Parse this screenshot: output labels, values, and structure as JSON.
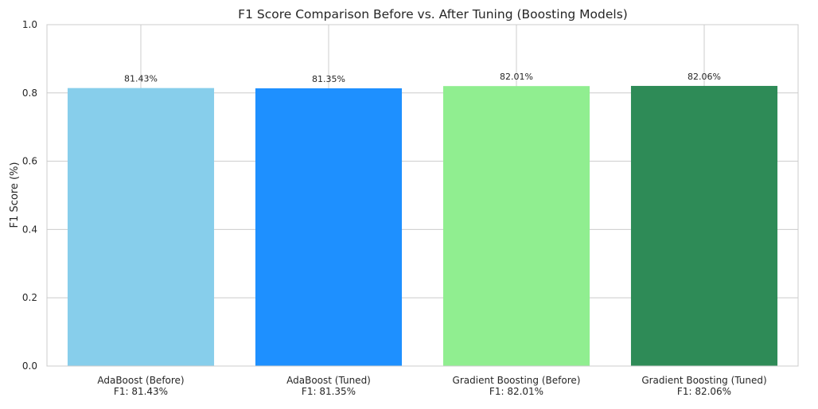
{
  "chart_data": {
    "type": "bar",
    "title": "F1 Score Comparison Before vs. After Tuning (Boosting Models)",
    "xlabel": "",
    "ylabel": "F1 Score (%)",
    "ylim": [
      0,
      1.0
    ],
    "yticks": [
      0.0,
      0.2,
      0.4,
      0.6,
      0.8,
      1.0
    ],
    "ytick_labels": [
      "0.0",
      "0.2",
      "0.4",
      "0.6",
      "0.8",
      "1.0"
    ],
    "grid": true,
    "categories": [
      "AdaBoost (Before)",
      "AdaBoost (Tuned)",
      "Gradient Boosting (Before)",
      "Gradient Boosting (Tuned)"
    ],
    "category_sublabels": [
      "F1: 81.43%",
      "F1: 81.35%",
      "F1: 82.01%",
      "F1: 82.06%"
    ],
    "values": [
      0.8143,
      0.8135,
      0.8201,
      0.8206
    ],
    "data_labels": [
      "81.43%",
      "81.35%",
      "82.01%",
      "82.06%"
    ],
    "colors": [
      "#87ceeb",
      "#1e90ff",
      "#90ee90",
      "#2e8b57"
    ]
  }
}
